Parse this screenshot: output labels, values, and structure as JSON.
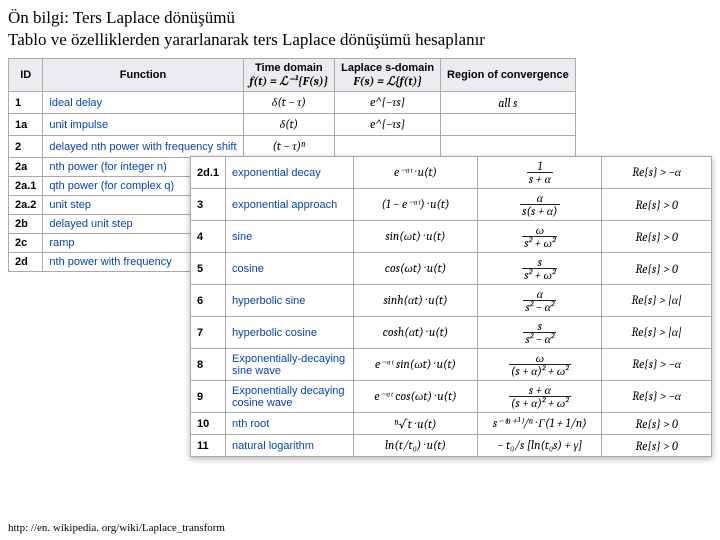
{
  "title": "Ön bilgi: Ters Laplace dönüşümü",
  "subtitle": "Tablo ve özelliklerden yararlanarak ters Laplace dönüşümü hesaplanır",
  "footer": "http: //en. wikipedia. org/wiki/Laplace_transform",
  "back_table": {
    "headers": [
      "ID",
      "Function",
      "Time domain",
      "Laplace s-domain",
      "Region of convergence"
    ],
    "header_math": [
      "",
      "",
      "f(t) = ℒ⁻¹{F(s)}",
      "F(s) = ℒ{f(t)}",
      ""
    ],
    "rows": [
      {
        "id": "1",
        "func": "ideal delay",
        "time": "δ(t − τ)",
        "lap": "e^{−τs}",
        "roc": "all s"
      },
      {
        "id": "1a",
        "func": "unit impulse",
        "time": "δ(t)",
        "lap": "e^{−τs}",
        "roc": ""
      },
      {
        "id": "2",
        "func": "delayed nth power with frequency shift",
        "time": "(t − τ)ⁿ",
        "lap": "",
        "roc": ""
      },
      {
        "id": "2a",
        "func": "nth power (for integer n)",
        "time": "",
        "lap": "",
        "roc": ""
      },
      {
        "id": "2a.1",
        "func": "qth power (for complex q)",
        "time": "",
        "lap": "",
        "roc": ""
      },
      {
        "id": "2a.2",
        "func": "unit step",
        "time": "",
        "lap": "",
        "roc": ""
      },
      {
        "id": "2b",
        "func": "delayed unit step",
        "time": "",
        "lap": "",
        "roc": ""
      },
      {
        "id": "2c",
        "func": "ramp",
        "time": "",
        "lap": "",
        "roc": ""
      },
      {
        "id": "2d",
        "func": "nth power with frequency",
        "time": "",
        "lap": "",
        "roc": ""
      }
    ]
  },
  "front_table": {
    "rows": [
      {
        "id": "2d.1",
        "func": "exponential decay",
        "time": "e⁻ᵅᵗ · u(t)",
        "lap_num": "1",
        "lap_den": "s + α",
        "roc": "Re{s} > −α"
      },
      {
        "id": "3",
        "func": "exponential approach",
        "time": "(1 − e⁻ᵅᵗ) · u(t)",
        "lap_num": "α",
        "lap_den": "s(s + α)",
        "roc": "Re{s} > 0"
      },
      {
        "id": "4",
        "func": "sine",
        "time": "sin(ωt) · u(t)",
        "lap_num": "ω",
        "lap_den": "s² + ω²",
        "roc": "Re{s} > 0"
      },
      {
        "id": "5",
        "func": "cosine",
        "time": "cos(ωt) · u(t)",
        "lap_num": "s",
        "lap_den": "s² + ω²",
        "roc": "Re{s} > 0"
      },
      {
        "id": "6",
        "func": "hyperbolic sine",
        "time": "sinh(αt) · u(t)",
        "lap_num": "α",
        "lap_den": "s² − α²",
        "roc": "Re{s} > |α|"
      },
      {
        "id": "7",
        "func": "hyperbolic cosine",
        "time": "cosh(αt) · u(t)",
        "lap_num": "s",
        "lap_den": "s² − α²",
        "roc": "Re{s} > |α|"
      },
      {
        "id": "8",
        "func": "Exponentially-decaying sine wave",
        "time": "e⁻ᵅᵗ sin(ωt) · u(t)",
        "lap_num": "ω",
        "lap_den": "(s + α)² + ω²",
        "roc": "Re{s} > −α"
      },
      {
        "id": "9",
        "func": "Exponentially decaying cosine wave",
        "time": "e⁻ᵅᵗ cos(ωt) · u(t)",
        "lap_num": "s + α",
        "lap_den": "(s + α)² + ω²",
        "roc": "Re{s} > −α"
      },
      {
        "id": "10",
        "func": "nth root",
        "time": "ⁿ√t · u(t)",
        "lap": "s⁻⁽ⁿ⁺¹⁾/ⁿ · Γ(1 + 1/n)",
        "roc": "Re{s} > 0"
      },
      {
        "id": "11",
        "func": "natural logarithm",
        "time": "ln(t/t₀) · u(t)",
        "lap": "− t₀/s [ln(t₀s) + γ]",
        "roc": "Re{s} > 0"
      }
    ]
  }
}
